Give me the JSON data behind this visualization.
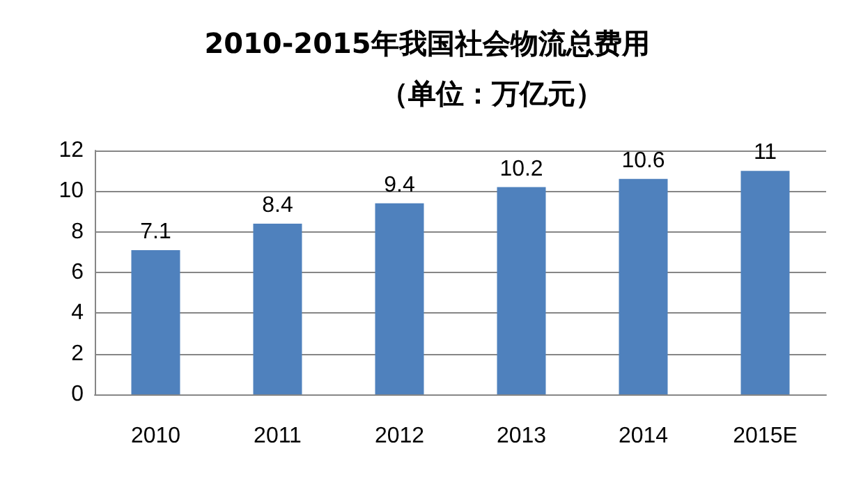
{
  "chart_data": {
    "type": "bar",
    "title": "2010-2015年我国社会物流总费用",
    "subtitle": "（单位：万亿元）",
    "categories": [
      "2010",
      "2011",
      "2012",
      "2013",
      "2014",
      "2015E"
    ],
    "values": [
      7.1,
      8.4,
      9.4,
      10.2,
      10.6,
      11
    ],
    "color": "#4f81bd",
    "ylim": [
      0,
      12
    ],
    "yticks": [
      0,
      2,
      4,
      6,
      8,
      10,
      12
    ],
    "grid": "y",
    "data_labels": true
  }
}
